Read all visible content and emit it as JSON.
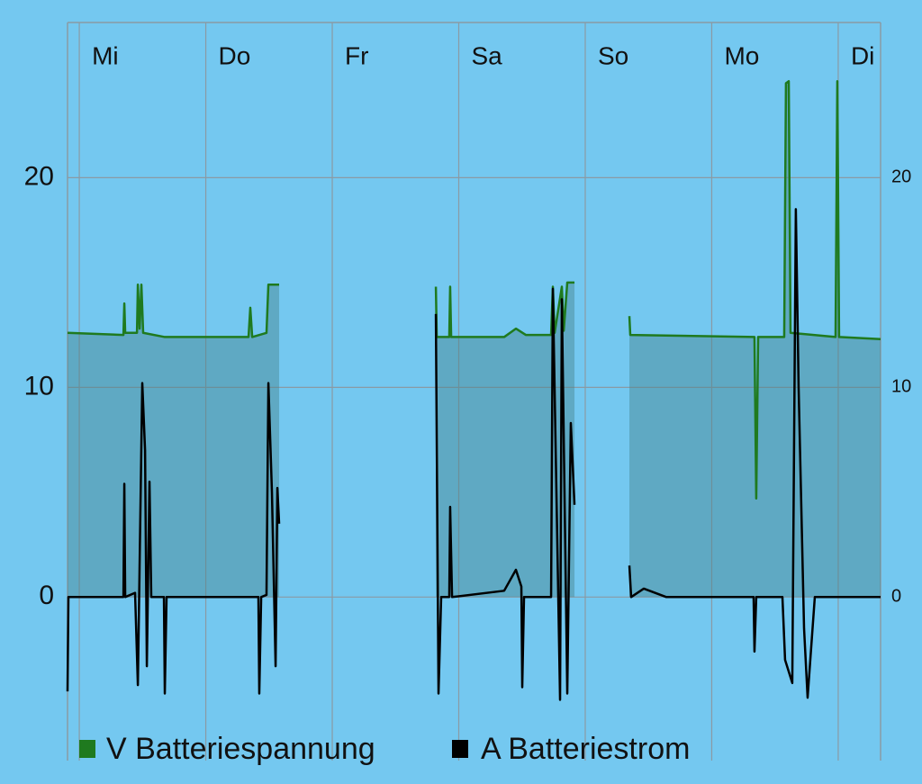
{
  "chart_data": {
    "type": "line",
    "xlim": [
      -0.093,
      6.335
    ],
    "xticks": [
      {
        "value": 0,
        "label": "Mi"
      },
      {
        "value": 1,
        "label": "Do"
      },
      {
        "value": 2,
        "label": "Fr"
      },
      {
        "value": 3,
        "label": "Sa"
      },
      {
        "value": 4,
        "label": "So"
      },
      {
        "value": 5,
        "label": "Mo"
      },
      {
        "value": 6,
        "label": "Di"
      }
    ],
    "ylim": [
      -7.8,
      27.4
    ],
    "yticks": [
      0,
      10,
      20
    ],
    "y2lim": [
      -7.8,
      27.4
    ],
    "y2ticks": [
      0,
      10,
      20
    ],
    "grid": true,
    "legend": "bottom",
    "series": [
      {
        "name": "V Batteriespannung",
        "color": "#1f7a1f",
        "area": true,
        "x": [
          -0.093,
          0.349,
          0.356,
          0.363,
          0.456,
          0.463,
          0.477,
          0.491,
          0.505,
          0.676,
          1.338,
          1.352,
          1.367,
          1.48,
          1.495,
          1.58,
          2.0,
          2.819,
          2.826,
          2.925,
          2.932,
          2.94,
          3.359,
          3.452,
          3.53,
          3.73,
          3.744,
          3.758,
          3.815,
          3.83,
          3.858,
          3.915,
          4.1,
          4.349,
          4.356,
          5.338,
          5.352,
          5.367,
          5.573,
          5.587,
          5.609,
          5.623,
          5.979,
          5.993,
          6.007,
          6.335
        ],
        "values": [
          12.6,
          12.5,
          14.0,
          12.6,
          12.6,
          14.9,
          12.8,
          14.9,
          12.6,
          12.4,
          12.4,
          13.8,
          12.4,
          12.6,
          14.9,
          14.9,
          null,
          14.8,
          12.4,
          12.4,
          14.8,
          12.4,
          12.4,
          12.8,
          12.5,
          12.5,
          14.8,
          12.6,
          14.8,
          12.7,
          15.0,
          15.0,
          null,
          13.4,
          12.5,
          12.4,
          4.7,
          12.4,
          12.4,
          24.5,
          24.6,
          12.6,
          12.4,
          24.6,
          12.4,
          12.3
        ]
      },
      {
        "name": "A Batteriestrom",
        "color": "#000000",
        "area": false,
        "x": [
          -0.093,
          -0.086,
          0.349,
          0.356,
          0.363,
          0.441,
          0.463,
          0.498,
          0.52,
          0.534,
          0.555,
          0.569,
          0.669,
          0.676,
          0.69,
          1.416,
          1.423,
          1.438,
          1.48,
          1.495,
          1.523,
          1.552,
          1.566,
          1.58,
          2.0,
          2.819,
          2.84,
          2.861,
          2.925,
          2.932,
          2.947,
          3.359,
          3.452,
          3.495,
          3.502,
          3.516,
          3.73,
          3.744,
          3.801,
          3.815,
          3.858,
          3.886,
          3.915,
          4.1,
          4.349,
          4.363,
          4.463,
          4.641,
          5.331,
          5.338,
          5.352,
          5.559,
          5.58,
          5.637,
          5.665,
          5.687,
          5.73,
          5.758,
          5.815,
          6.335
        ],
        "values": [
          -4.5,
          0,
          0,
          5.4,
          0,
          0.2,
          -4.2,
          10.2,
          7,
          -3.3,
          5.5,
          0,
          0,
          -4.6,
          0,
          0,
          -4.6,
          0,
          0.1,
          10.2,
          5,
          -3.3,
          5.2,
          3.5,
          null,
          13.5,
          -4.6,
          0,
          0,
          4.3,
          0,
          0.3,
          1.3,
          0.5,
          -4.3,
          0,
          0,
          14.7,
          -4.9,
          14.2,
          -4.6,
          8.3,
          4.4,
          null,
          1.5,
          0,
          0.4,
          0,
          0,
          -2.6,
          0,
          0,
          -3,
          -4.1,
          18.5,
          10,
          -1.5,
          -4.8,
          0,
          0
        ]
      }
    ]
  }
}
